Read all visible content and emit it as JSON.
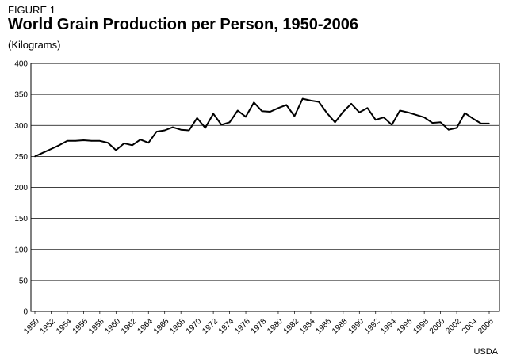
{
  "figure_label": "FIGURE 1",
  "title": "World Grain Production per Person, 1950-2006",
  "subtitle": "(Kilograms)",
  "source": "USDA",
  "chart_data": {
    "type": "line",
    "title": "World Grain Production per Person, 1950-2006",
    "ylabel": "(Kilograms)",
    "xlabel": "",
    "ylim": [
      0,
      400
    ],
    "yticks": [
      0,
      50,
      100,
      150,
      200,
      250,
      300,
      350,
      400
    ],
    "xticks": [
      "1950",
      "1952",
      "1954",
      "1956",
      "1958",
      "1960",
      "1962",
      "1964",
      "1966",
      "1968",
      "1970",
      "1972",
      "1974",
      "1976",
      "1978",
      "1980",
      "1982",
      "1984",
      "1986",
      "1988",
      "1990",
      "1992",
      "1994",
      "1996",
      "1998",
      "2000",
      "2002",
      "2004",
      "2006"
    ],
    "grid": "horizontal",
    "line_color": "#000000",
    "x": [
      1950,
      1951,
      1952,
      1953,
      1954,
      1955,
      1956,
      1957,
      1958,
      1959,
      1960,
      1961,
      1962,
      1963,
      1964,
      1965,
      1966,
      1967,
      1968,
      1969,
      1970,
      1971,
      1972,
      1973,
      1974,
      1975,
      1976,
      1977,
      1978,
      1979,
      1980,
      1981,
      1982,
      1983,
      1984,
      1985,
      1986,
      1987,
      1988,
      1989,
      1990,
      1991,
      1992,
      1993,
      1994,
      1995,
      1996,
      1997,
      1998,
      1999,
      2000,
      2001,
      2002,
      2003,
      2004,
      2005,
      2006
    ],
    "values": [
      250,
      256,
      262,
      268,
      275,
      275,
      276,
      275,
      275,
      272,
      260,
      271,
      268,
      277,
      272,
      290,
      292,
      297,
      293,
      292,
      312,
      296,
      319,
      301,
      305,
      324,
      314,
      337,
      323,
      322,
      328,
      333,
      315,
      343,
      340,
      338,
      320,
      305,
      322,
      335,
      321,
      328,
      309,
      313,
      301,
      324,
      321,
      317,
      313,
      304,
      305,
      293,
      296,
      320,
      311,
      303,
      303
    ]
  }
}
